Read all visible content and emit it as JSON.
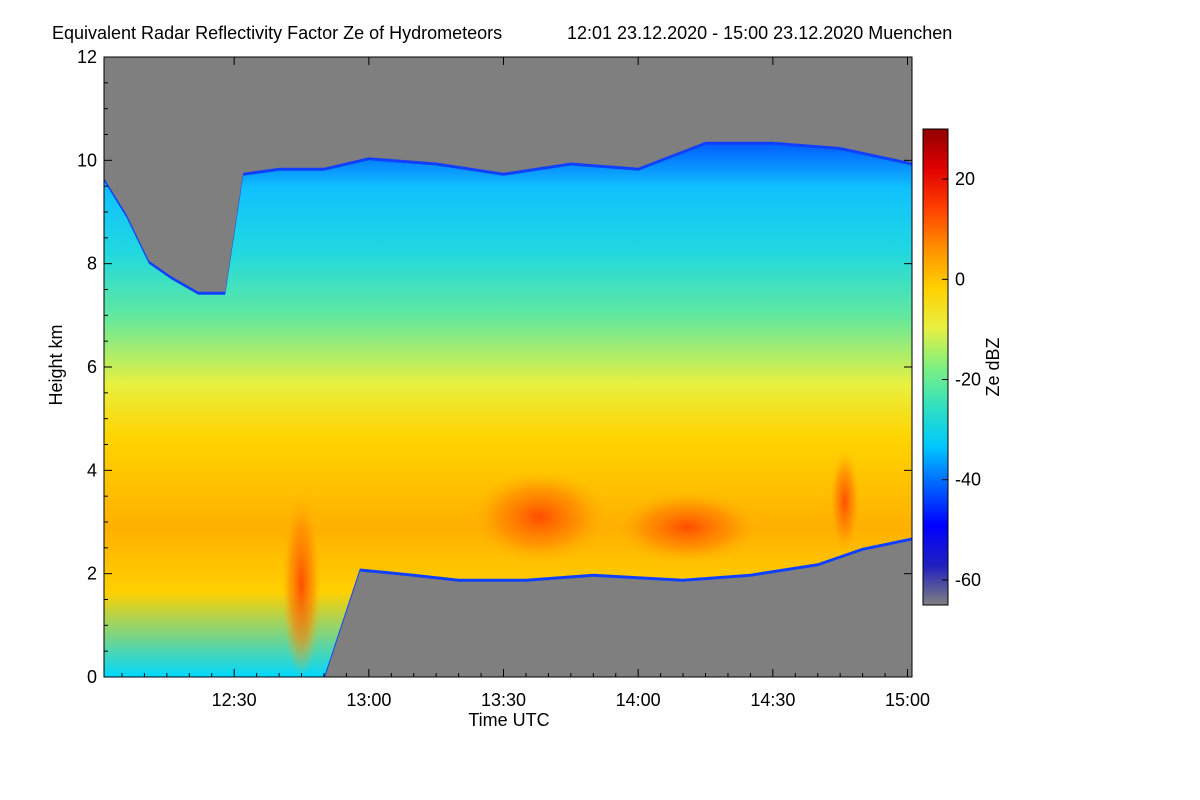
{
  "chart_data": {
    "type": "heatmap",
    "title": "Equivalent Radar Reflectivity Factor Ze of Hydrometeors",
    "subtitle": "12:01 23.12.2020 - 15:00 23.12.2020 Muenchen",
    "xlabel": "Time UTC",
    "ylabel": "Height km",
    "x_range": [
      "12:01",
      "15:00"
    ],
    "x_ticks": [
      {
        "label": "12:30",
        "minutes": 150
      },
      {
        "label": "13:00",
        "minutes": 180
      },
      {
        "label": "13:30",
        "minutes": 210
      },
      {
        "label": "14:00",
        "minutes": 240
      },
      {
        "label": "14:30",
        "minutes": 270
      },
      {
        "label": "15:00",
        "minutes": 300
      }
    ],
    "x_range_minutes": [
      121,
      301
    ],
    "ylim": [
      0,
      12
    ],
    "y_ticks": [
      {
        "label": "0",
        "value": 0
      },
      {
        "label": "2",
        "value": 2
      },
      {
        "label": "4",
        "value": 4
      },
      {
        "label": "6",
        "value": 6
      },
      {
        "label": "8",
        "value": 8
      },
      {
        "label": "10",
        "value": 10
      },
      {
        "label": "12",
        "value": 12
      }
    ],
    "colorbar": {
      "label": "Ze dBZ",
      "range": [
        -65,
        30
      ],
      "ticks": [
        {
          "label": "20",
          "value": 20
        },
        {
          "label": "0",
          "value": 0
        },
        {
          "label": "-20",
          "value": -20
        },
        {
          "label": "-40",
          "value": -40
        },
        {
          "label": "-60",
          "value": -60
        }
      ],
      "colors": [
        "#808080",
        "#2020c0",
        "#0000ff",
        "#0060ff",
        "#00c8ff",
        "#30e0c0",
        "#80f080",
        "#e8f040",
        "#ffd000",
        "#ff9000",
        "#ff4000",
        "#e00000",
        "#900000"
      ]
    },
    "background_color": "#7f7f7f",
    "cloud_top_km": [
      {
        "t": 121,
        "h": 9.6
      },
      {
        "t": 126,
        "h": 8.9
      },
      {
        "t": 131,
        "h": 8.0
      },
      {
        "t": 136,
        "h": 7.7
      },
      {
        "t": 142,
        "h": 7.4
      },
      {
        "t": 148,
        "h": 7.4
      },
      {
        "t": 152,
        "h": 9.7
      },
      {
        "t": 160,
        "h": 9.8
      },
      {
        "t": 170,
        "h": 9.8
      },
      {
        "t": 180,
        "h": 10.0
      },
      {
        "t": 195,
        "h": 9.9
      },
      {
        "t": 210,
        "h": 9.7
      },
      {
        "t": 225,
        "h": 9.9
      },
      {
        "t": 240,
        "h": 9.8
      },
      {
        "t": 255,
        "h": 10.3
      },
      {
        "t": 270,
        "h": 10.3
      },
      {
        "t": 285,
        "h": 10.2
      },
      {
        "t": 301,
        "h": 9.9
      }
    ],
    "cloud_base_km": [
      {
        "t": 121,
        "h": 0.0
      },
      {
        "t": 140,
        "h": 0.0
      },
      {
        "t": 155,
        "h": 0.0
      },
      {
        "t": 170,
        "h": 0.0
      },
      {
        "t": 178,
        "h": 2.1
      },
      {
        "t": 190,
        "h": 2.0
      },
      {
        "t": 200,
        "h": 1.9
      },
      {
        "t": 215,
        "h": 1.9
      },
      {
        "t": 230,
        "h": 2.0
      },
      {
        "t": 250,
        "h": 1.9
      },
      {
        "t": 265,
        "h": 2.0
      },
      {
        "t": 280,
        "h": 2.2
      },
      {
        "t": 290,
        "h": 2.5
      },
      {
        "t": 301,
        "h": 2.7
      }
    ],
    "max_reflectivity_regions": [
      {
        "t_start": 204,
        "t_end": 232,
        "h_low": 2.2,
        "h_high": 4.0,
        "ze": 14
      },
      {
        "t_start": 236,
        "t_end": 266,
        "h_low": 2.2,
        "h_high": 3.6,
        "ze": 12
      },
      {
        "t_start": 284,
        "t_end": 288,
        "h_low": 2.4,
        "h_high": 4.4,
        "ze": 18
      },
      {
        "t_start": 162,
        "t_end": 168,
        "h_low": 0.0,
        "h_high": 3.6,
        "ze": 16
      }
    ]
  }
}
